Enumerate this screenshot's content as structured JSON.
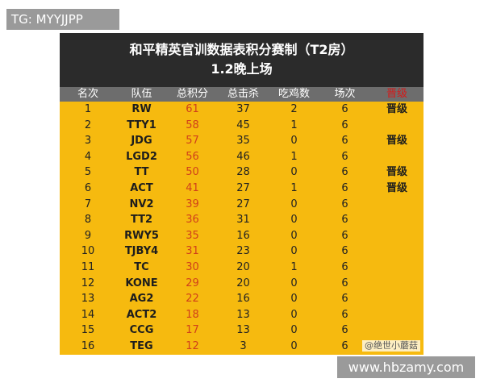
{
  "tag_top": "TG: MYYJJPP",
  "tag_bottom": "www.hbzamy.com",
  "board": {
    "title": "和平精英官训数据表积分赛制（T2房）",
    "subtitle": "1.2晚上场",
    "watermark": "@绝世小蘑菇",
    "headers": [
      "名次",
      "队伍",
      "总积分",
      "总击杀",
      "吃鸡数",
      "场次",
      "晋级"
    ],
    "rows": [
      [
        "1",
        "RW",
        "61",
        "37",
        "2",
        "6",
        "晋级"
      ],
      [
        "2",
        "TTY1",
        "58",
        "45",
        "1",
        "6",
        ""
      ],
      [
        "3",
        "JDG",
        "57",
        "35",
        "0",
        "6",
        "晋级"
      ],
      [
        "4",
        "LGD2",
        "56",
        "46",
        "1",
        "6",
        ""
      ],
      [
        "5",
        "TT",
        "50",
        "28",
        "0",
        "6",
        "晋级"
      ],
      [
        "6",
        "ACT",
        "41",
        "27",
        "1",
        "6",
        "晋级"
      ],
      [
        "7",
        "NV2",
        "39",
        "27",
        "0",
        "6",
        ""
      ],
      [
        "8",
        "TT2",
        "36",
        "31",
        "0",
        "6",
        ""
      ],
      [
        "9",
        "RWY5",
        "35",
        "16",
        "0",
        "6",
        ""
      ],
      [
        "10",
        "TJBY4",
        "31",
        "23",
        "0",
        "6",
        ""
      ],
      [
        "11",
        "TC",
        "30",
        "20",
        "1",
        "6",
        ""
      ],
      [
        "12",
        "KONE",
        "29",
        "20",
        "0",
        "6",
        ""
      ],
      [
        "13",
        "AG2",
        "22",
        "16",
        "0",
        "6",
        ""
      ],
      [
        "14",
        "ACT2",
        "18",
        "13",
        "0",
        "6",
        ""
      ],
      [
        "15",
        "CCG",
        "17",
        "13",
        "0",
        "6",
        ""
      ],
      [
        "16",
        "TEG",
        "12",
        "3",
        "0",
        "6",
        ""
      ]
    ]
  }
}
